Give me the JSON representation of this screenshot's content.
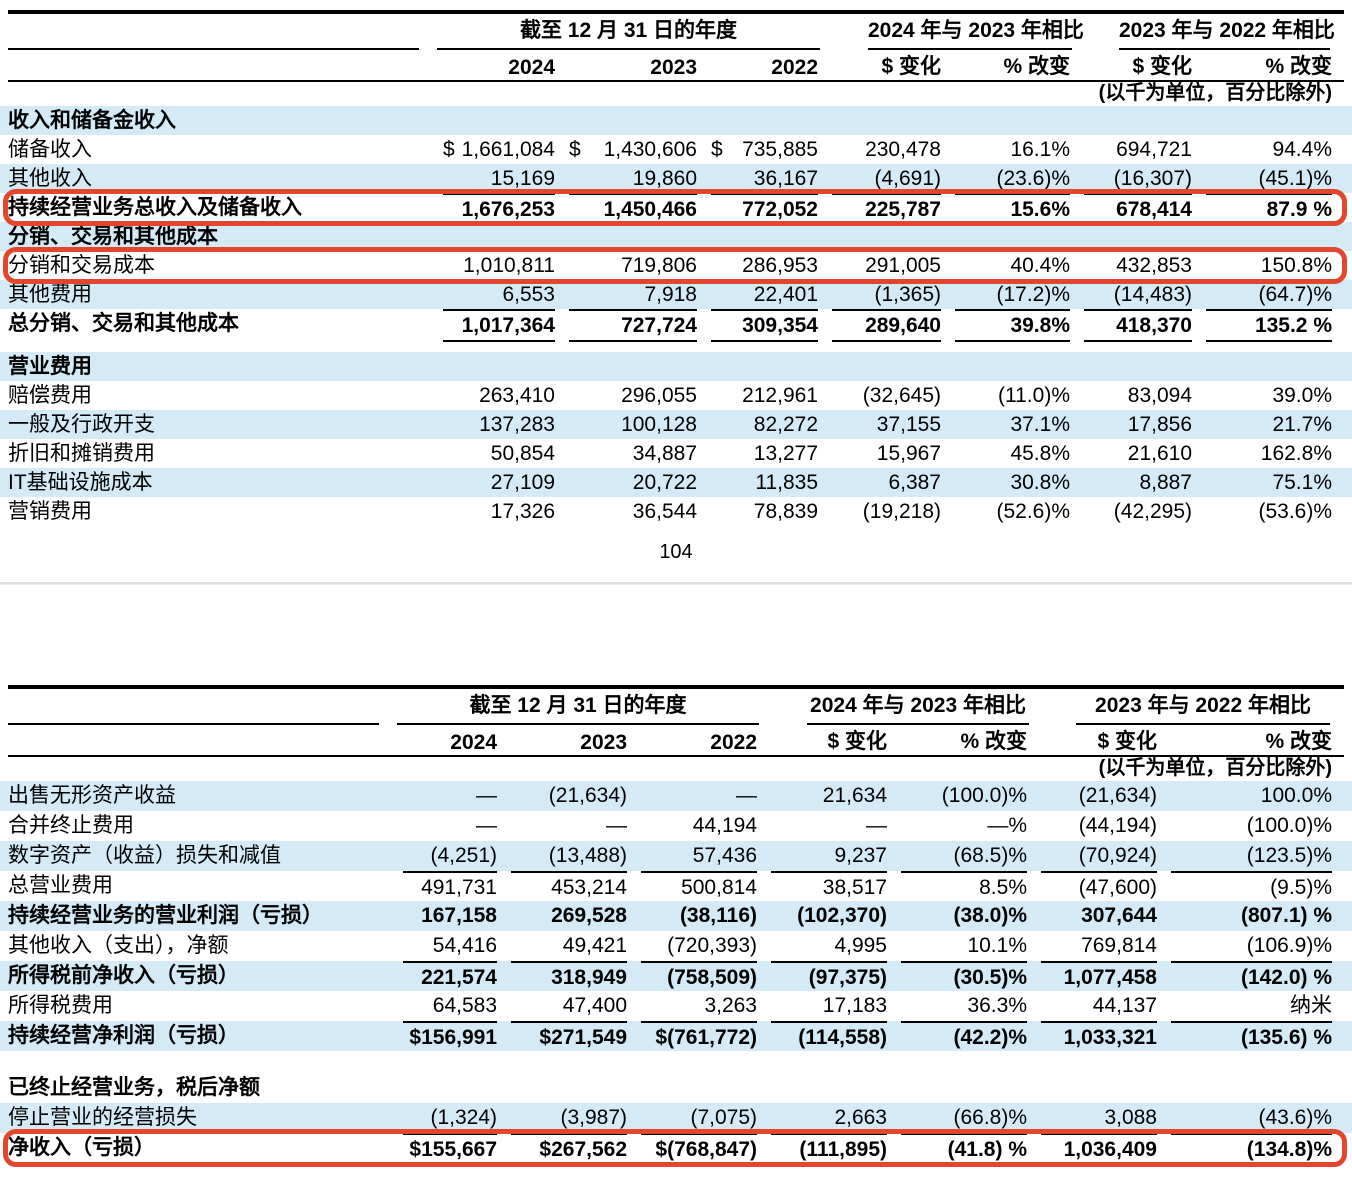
{
  "page": {
    "number": "104"
  },
  "colors": {
    "row_blue": "#d4eaf7",
    "highlight_red": "#e2462c"
  },
  "shared": {
    "period_header": "截至 12 月 31 日的年度",
    "cmp1_header": "2024 年与 2023 年相比",
    "cmp2_header": "2023 年与 2022 年相比",
    "col_years": [
      "2024",
      "2023",
      "2022"
    ],
    "dollar_change": "$ 变化",
    "pct_change": "% 改变",
    "units_note": "(以千为单位，百分比除外)"
  },
  "table1": {
    "rows": [
      {
        "label": "收入和储备金收入",
        "section": true,
        "blue": true
      },
      {
        "label": "储备收入",
        "values": [
          "$ 1,661,084",
          "$ 1,430,606",
          "$ 735,885",
          "230,478",
          "16.1%",
          "694,721",
          "94.4%"
        ]
      },
      {
        "label": "其他收入",
        "blue": true,
        "values": [
          "15,169",
          "19,860",
          "36,167",
          "(4,691)",
          "(23.6)%",
          "(16,307)",
          "(45.1)%"
        ]
      },
      {
        "label": "持续经营业务总收入及储备收入",
        "bold": true,
        "redbox": true,
        "lt": true,
        "values": [
          "1,676,253",
          "1,450,466",
          "772,052",
          "225,787",
          "15.6%",
          "678,414",
          "87.9 %"
        ]
      },
      {
        "label": "分销、交易和其他成本",
        "section": true,
        "blue": true
      },
      {
        "label": "分销和交易成本",
        "redbox": true,
        "values": [
          "1,010,811",
          "719,806",
          "286,953",
          "291,005",
          "40.4%",
          "432,853",
          "150.8%"
        ]
      },
      {
        "label": "其他费用",
        "blue": true,
        "values": [
          "6,553",
          "7,918",
          "22,401",
          "(1,365)",
          "(17.2)%",
          "(14,483)",
          "(64.7)%"
        ]
      },
      {
        "label": "总分销、交易和其他成本",
        "bold": true,
        "lt": true,
        "lb": true,
        "values": [
          "1,017,364",
          "727,724",
          "309,354",
          "289,640",
          "39.8%",
          "418,370",
          "135.2 %"
        ]
      },
      {
        "spacer": 14
      },
      {
        "label": "营业费用",
        "section": true,
        "blue": true
      },
      {
        "label": "赔偿费用",
        "values": [
          "263,410",
          "296,055",
          "212,961",
          "(32,645)",
          "(11.0)%",
          "83,094",
          "39.0%"
        ]
      },
      {
        "label": "一般及行政开支",
        "blue": true,
        "values": [
          "137,283",
          "100,128",
          "82,272",
          "37,155",
          "37.1%",
          "17,856",
          "21.7%"
        ]
      },
      {
        "label": "折旧和摊销费用",
        "values": [
          "50,854",
          "34,887",
          "13,277",
          "15,967",
          "45.8%",
          "21,610",
          "162.8%"
        ]
      },
      {
        "label": "IT基础设施成本",
        "blue": true,
        "values": [
          "27,109",
          "20,722",
          "11,835",
          "6,387",
          "30.8%",
          "8,887",
          "75.1%"
        ]
      },
      {
        "label": "营销费用",
        "values": [
          "17,326",
          "36,544",
          "78,839",
          "(19,218)",
          "(52.6)%",
          "(42,295)",
          "(53.6)%"
        ]
      }
    ]
  },
  "table2": {
    "rows": [
      {
        "label": "出售无形资产收益",
        "blue": true,
        "values": [
          "—",
          "(21,634)",
          "—",
          "21,634",
          "(100.0)%",
          "(21,634)",
          "100.0%"
        ]
      },
      {
        "label": "合并终止费用",
        "values": [
          "—",
          "—",
          "44,194",
          "—",
          "—%",
          "(44,194)",
          "(100.0)%"
        ]
      },
      {
        "label": "数字资产（收益）损失和减值",
        "blue": true,
        "values": [
          "(4,251)",
          "(13,488)",
          "57,436",
          "9,237",
          "(68.5)%",
          "(70,924)",
          "(123.5)%"
        ]
      },
      {
        "label": "总营业费用",
        "lt": true,
        "lb": true,
        "values": [
          "491,731",
          "453,214",
          "500,814",
          "38,517",
          "8.5%",
          "(47,600)",
          "(9.5)%"
        ]
      },
      {
        "label": "持续经营业务的营业利润（亏损）",
        "blue": true,
        "bold": true,
        "values": [
          "167,158",
          "269,528",
          "(38,116)",
          "(102,370)",
          "(38.0)%",
          "307,644",
          "(807.1) %"
        ]
      },
      {
        "label": "其他收入（支出），净额",
        "values": [
          "54,416",
          "49,421",
          "(720,393)",
          "4,995",
          "10.1%",
          "769,814",
          "(106.9)%"
        ]
      },
      {
        "label": "所得税前净收入（亏损）",
        "blue": true,
        "bold": true,
        "lt": true,
        "values": [
          "221,574",
          "318,949",
          "(758,509)",
          "(97,375)",
          "(30.5)%",
          "1,077,458",
          "(142.0) %"
        ]
      },
      {
        "label": "所得税费用",
        "values": [
          "64,583",
          "47,400",
          "3,263",
          "17,183",
          "36.3%",
          "44,137",
          "纳米"
        ]
      },
      {
        "label": "持续经营净利润（亏损）",
        "blue": true,
        "bold": true,
        "lt": true,
        "values": [
          "$156,991",
          "$271,549",
          "$(761,772)",
          "(114,558)",
          "(42.2)%",
          "1,033,321",
          "(135.6) %"
        ]
      },
      {
        "spacer": 22
      },
      {
        "label": "已终止经营业务，税后净额",
        "section": true
      },
      {
        "label": "停止营业的经营损失",
        "blue": true,
        "values": [
          "(1,324)",
          "(3,987)",
          "(7,075)",
          "2,663",
          "(66.8)%",
          "3,088",
          "(43.6)%"
        ]
      },
      {
        "label": "净收入（亏损）",
        "bold": true,
        "redbox": true,
        "lt": true,
        "values": [
          "$155,667",
          "$267,562",
          "$(768,847)",
          "(111,895)",
          "(41.8) %",
          "1,036,409",
          "(134.8)%"
        ]
      }
    ]
  }
}
